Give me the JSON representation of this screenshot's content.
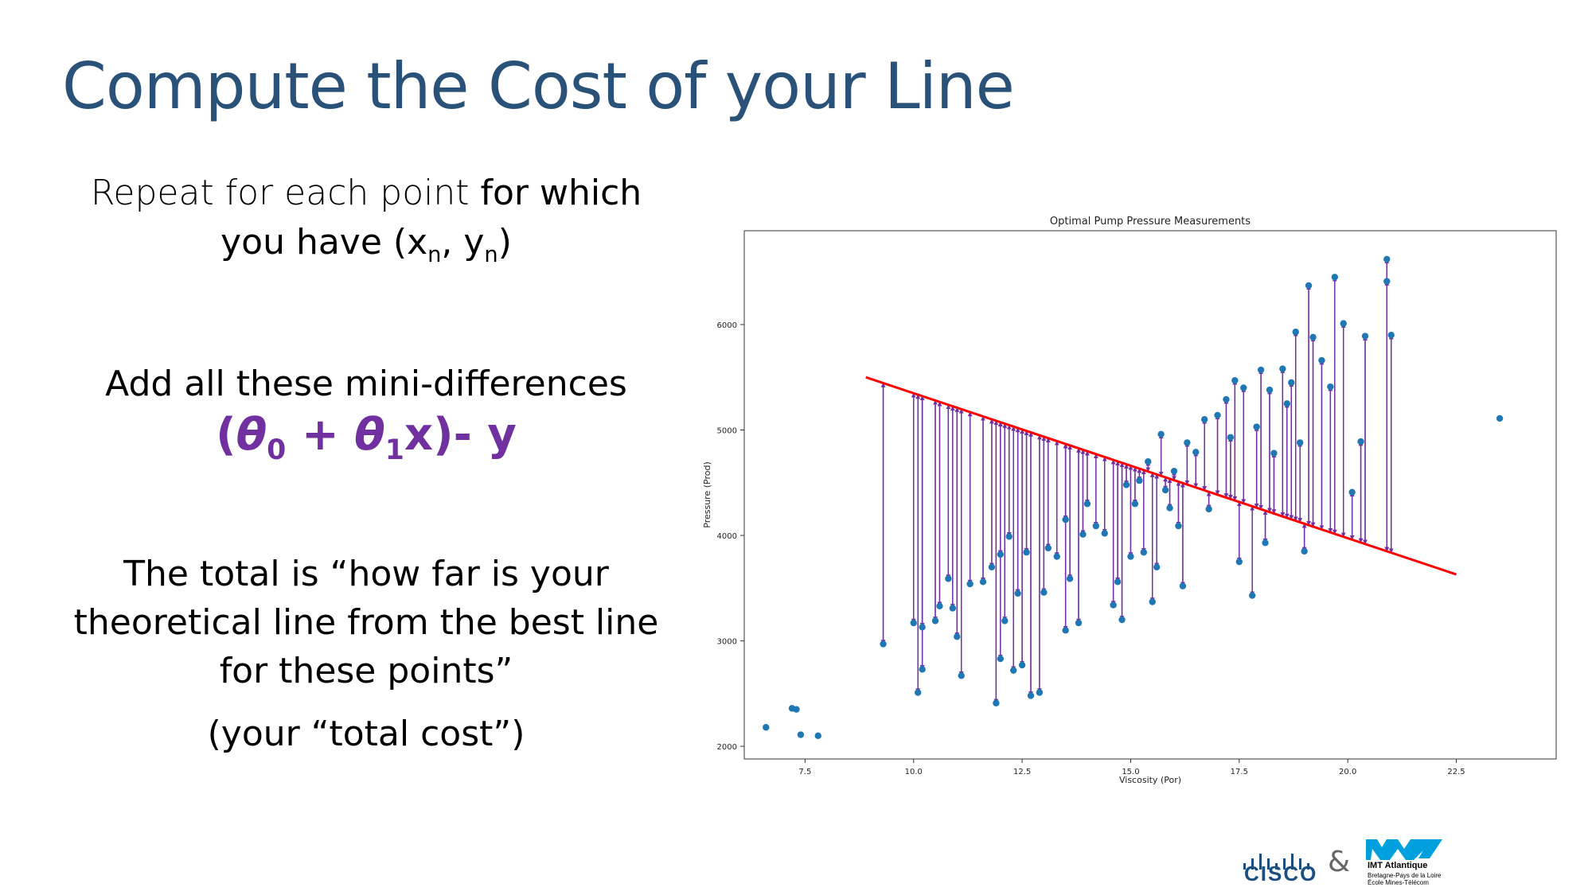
{
  "slide": {
    "title": "Compute the Cost of your Line",
    "repeat_pre": "Repeat for each point ",
    "repeat_bold": "for which",
    "repeat_line2_pre": "you have (x",
    "sub_n1": "n",
    "comma_y": ", y",
    "sub_n2": "n",
    "close_paren": ")",
    "add_text": "Add all these mini-differences",
    "formula_open": "(",
    "theta": "θ",
    "sub_0": "0",
    "plus": " + ",
    "sub_1": "1",
    "formula_tail": "x)- y",
    "total_text": "The total is “how far is your theoretical line from the best line for these points”",
    "total_cost": "(your “total cost”)",
    "amp": "&",
    "cisco_label": "CISCO",
    "imt_name": "IMT Atlantique",
    "imt_sub1": "Bretagne-Pays de la Loire",
    "imt_sub2": "École Mines-Télécom"
  },
  "colors": {
    "title": "#2a5279",
    "formula": "#7030a0",
    "points": "#1f77b4",
    "line": "#ff0000",
    "arrows": "#7030a0",
    "cisco": "#1c4e80",
    "imt": "#00a0df"
  },
  "icons": [
    "cisco-logo-icon",
    "imt-atlantique-logo-icon"
  ],
  "chart_data": {
    "type": "scatter",
    "title": "Optimal Pump Pressure Measurements",
    "xlabel": "Viscosity (Por)",
    "ylabel": "Pressure (Prod)",
    "xlim": [
      6.1,
      24.8
    ],
    "ylim": [
      1880,
      6890
    ],
    "xticks": [
      7.5,
      10.0,
      12.5,
      15.0,
      17.5,
      20.0,
      22.5
    ],
    "yticks": [
      2000,
      3000,
      4000,
      5000,
      6000
    ],
    "fit_line": {
      "x": [
        8.9,
        22.5
      ],
      "y": [
        5500,
        3630
      ]
    },
    "points": [
      [
        6.6,
        2180
      ],
      [
        7.2,
        2360
      ],
      [
        7.3,
        2350
      ],
      [
        7.4,
        2110
      ],
      [
        7.8,
        2100
      ],
      [
        9.3,
        2970
      ],
      [
        10.0,
        3170
      ],
      [
        10.1,
        2510
      ],
      [
        10.2,
        3130
      ],
      [
        10.2,
        2730
      ],
      [
        10.5,
        3190
      ],
      [
        10.6,
        3330
      ],
      [
        10.8,
        3590
      ],
      [
        10.9,
        3310
      ],
      [
        11.0,
        3040
      ],
      [
        11.1,
        2670
      ],
      [
        11.3,
        3540
      ],
      [
        11.6,
        3560
      ],
      [
        11.8,
        3700
      ],
      [
        11.9,
        2410
      ],
      [
        12.0,
        2830
      ],
      [
        12.0,
        3820
      ],
      [
        12.1,
        3190
      ],
      [
        12.2,
        3990
      ],
      [
        12.3,
        2720
      ],
      [
        12.4,
        3450
      ],
      [
        12.5,
        2770
      ],
      [
        12.6,
        3840
      ],
      [
        12.7,
        2480
      ],
      [
        12.9,
        2510
      ],
      [
        13.0,
        3460
      ],
      [
        13.1,
        3880
      ],
      [
        13.3,
        3800
      ],
      [
        13.5,
        3100
      ],
      [
        13.5,
        4150
      ],
      [
        13.6,
        3590
      ],
      [
        13.8,
        3170
      ],
      [
        13.9,
        4010
      ],
      [
        14.0,
        4300
      ],
      [
        14.2,
        4090
      ],
      [
        14.4,
        4020
      ],
      [
        14.6,
        3340
      ],
      [
        14.7,
        3560
      ],
      [
        14.8,
        3200
      ],
      [
        14.9,
        4480
      ],
      [
        15.0,
        3800
      ],
      [
        15.1,
        4300
      ],
      [
        15.2,
        4520
      ],
      [
        15.3,
        3840
      ],
      [
        15.4,
        4700
      ],
      [
        15.5,
        3370
      ],
      [
        15.6,
        3700
      ],
      [
        15.7,
        4960
      ],
      [
        15.8,
        4430
      ],
      [
        15.9,
        4260
      ],
      [
        16.0,
        4610
      ],
      [
        16.1,
        4090
      ],
      [
        16.2,
        3520
      ],
      [
        16.3,
        4880
      ],
      [
        16.5,
        4790
      ],
      [
        16.7,
        5100
      ],
      [
        16.8,
        4250
      ],
      [
        17.0,
        5140
      ],
      [
        17.2,
        5290
      ],
      [
        17.3,
        4930
      ],
      [
        17.4,
        5470
      ],
      [
        17.5,
        3750
      ],
      [
        17.6,
        5400
      ],
      [
        17.8,
        3430
      ],
      [
        17.9,
        5030
      ],
      [
        18.0,
        5570
      ],
      [
        18.1,
        3930
      ],
      [
        18.2,
        5380
      ],
      [
        18.3,
        4780
      ],
      [
        18.5,
        5580
      ],
      [
        18.6,
        5250
      ],
      [
        18.7,
        5450
      ],
      [
        18.8,
        5930
      ],
      [
        18.9,
        4880
      ],
      [
        19.0,
        3850
      ],
      [
        19.1,
        6370
      ],
      [
        19.2,
        5880
      ],
      [
        19.4,
        5660
      ],
      [
        19.6,
        5410
      ],
      [
        19.7,
        6450
      ],
      [
        19.9,
        6010
      ],
      [
        20.1,
        4410
      ],
      [
        20.3,
        4890
      ],
      [
        20.4,
        5890
      ],
      [
        20.9,
        6620
      ],
      [
        20.9,
        6410
      ],
      [
        21.0,
        5900
      ],
      [
        23.5,
        5110
      ]
    ]
  }
}
